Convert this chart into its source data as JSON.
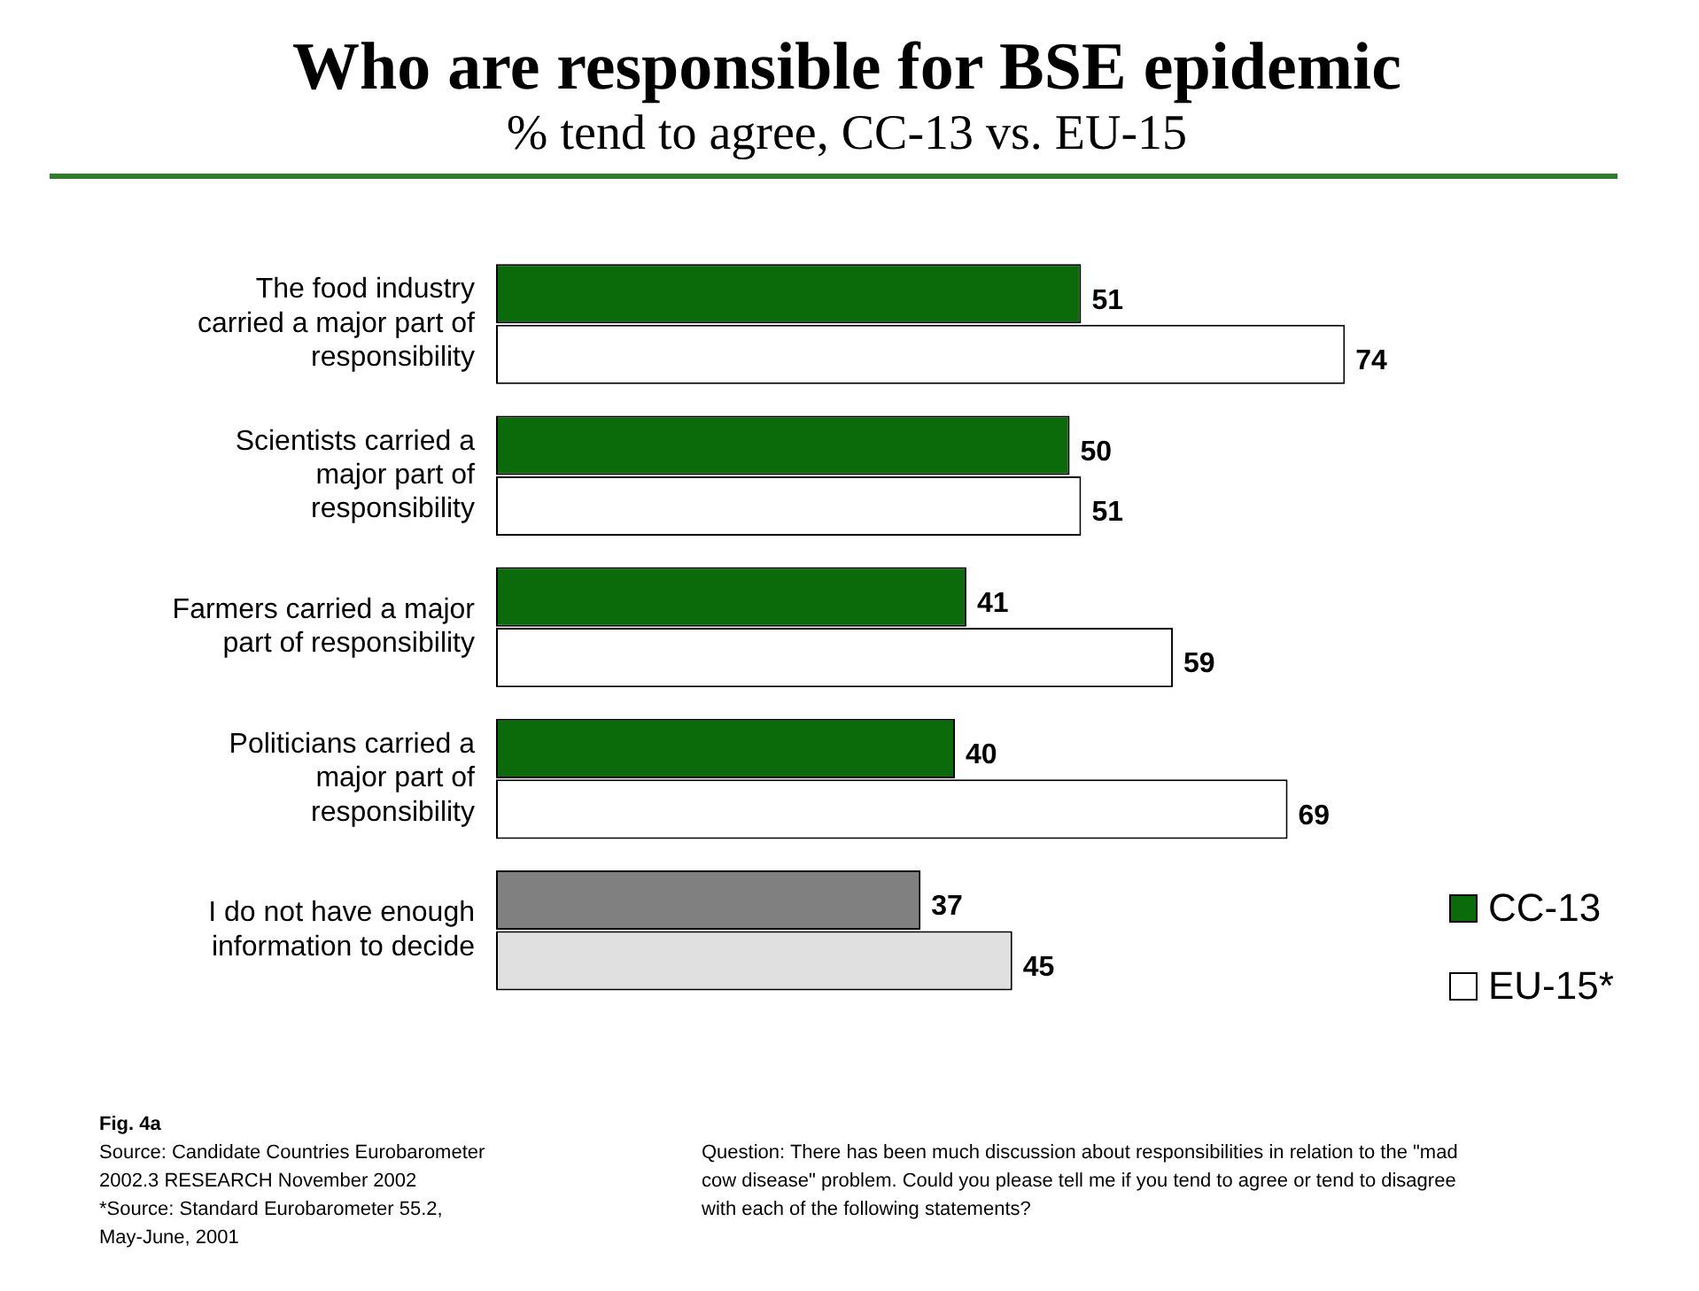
{
  "chart_data": {
    "type": "bar",
    "orientation": "horizontal",
    "title": "Who are responsible for BSE epidemic",
    "subtitle": "% tend to agree, CC-13 vs. EU-15",
    "categories": [
      "The food industry carried a major part of responsibility",
      "Scientists carried a major part of responsibility",
      "Farmers carried a major part of responsibility",
      "Politicians carried a major part of responsibility",
      "I do not have enough information to decide"
    ],
    "series": [
      {
        "name": "CC-13",
        "color": "#0b6b0b",
        "colors": [
          "#0b6b0b",
          "#0b6b0b",
          "#0b6b0b",
          "#0b6b0b",
          "#808080"
        ],
        "values": [
          51,
          50,
          41,
          40,
          37
        ]
      },
      {
        "name": "EU-15*",
        "color": "#ffffff",
        "colors": [
          "#ffffff",
          "#ffffff",
          "#ffffff",
          "#ffffff",
          "#e0e0e0"
        ],
        "values": [
          74,
          51,
          59,
          69,
          45
        ]
      }
    ],
    "tick_labels": "y",
    "data_labels": true,
    "grid": false,
    "legend": "bottom right",
    "annotations": [
      "Fig. 4a",
      "Source: Candidate Countries Eurobarometer 2002.3 RESEARCH November  2002",
      "*Source: Standard Eurobarometer 55.2, May-June, 2001",
      "Question:  There has been much discussion about responsibilities in relation to the \"mad cow disease\" problem. Could you please tell me if you tend to agree or tend to disagree with each of the following statements?"
    ]
  }
}
